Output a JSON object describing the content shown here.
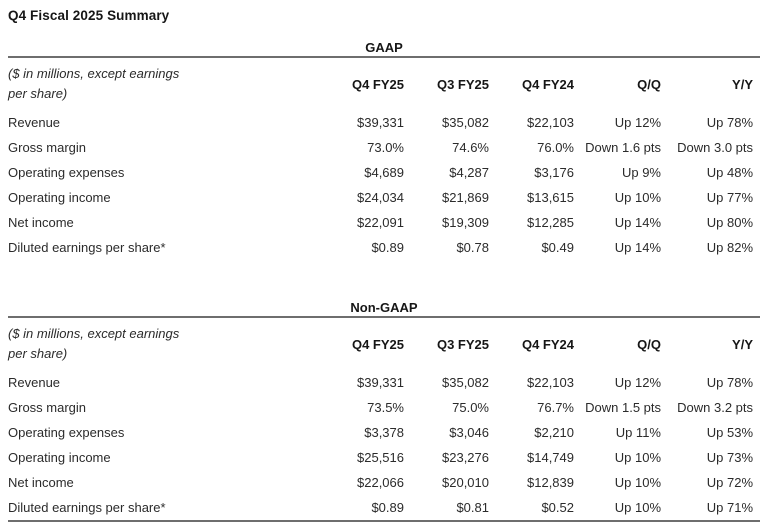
{
  "page": {
    "title": "Q4 Fiscal 2025 Summary"
  },
  "columns": {
    "note_line1": "($ in millions, except earnings",
    "note_line2": "per share)",
    "headers": [
      "Q4 FY25",
      "Q3 FY25",
      "Q4 FY24",
      "Q/Q",
      "Y/Y"
    ]
  },
  "tables": [
    {
      "heading": "GAAP",
      "rows": [
        {
          "label": "Revenue",
          "values": [
            "$39,331",
            "$35,082",
            "$22,103",
            "Up 12%",
            "Up 78%"
          ]
        },
        {
          "label": "Gross margin",
          "values": [
            "73.0%",
            "74.6%",
            "76.0%",
            "Down 1.6 pts",
            "Down 3.0 pts"
          ]
        },
        {
          "label": "Operating expenses",
          "values": [
            "$4,689",
            "$4,287",
            "$3,176",
            "Up 9%",
            "Up 48%"
          ]
        },
        {
          "label": "Operating income",
          "values": [
            "$24,034",
            "$21,869",
            "$13,615",
            "Up 10%",
            "Up 77%"
          ]
        },
        {
          "label": "Net income",
          "values": [
            "$22,091",
            "$19,309",
            "$12,285",
            "Up 14%",
            "Up 80%"
          ]
        },
        {
          "label": "Diluted earnings per share*",
          "values": [
            "$0.89",
            "$0.78",
            "$0.49",
            "Up 14%",
            "Up 82%"
          ]
        }
      ]
    },
    {
      "heading": "Non-GAAP",
      "rows": [
        {
          "label": "Revenue",
          "values": [
            "$39,331",
            "$35,082",
            "$22,103",
            "Up 12%",
            "Up 78%"
          ]
        },
        {
          "label": "Gross margin",
          "values": [
            "73.5%",
            "75.0%",
            "76.7%",
            "Down 1.5 pts",
            "Down 3.2 pts"
          ]
        },
        {
          "label": "Operating expenses",
          "values": [
            "$3,378",
            "$3,046",
            "$2,210",
            "Up 11%",
            "Up 53%"
          ]
        },
        {
          "label": "Operating income",
          "values": [
            "$25,516",
            "$23,276",
            "$14,749",
            "Up 10%",
            "Up 73%"
          ]
        },
        {
          "label": "Net income",
          "values": [
            "$22,066",
            "$20,010",
            "$12,839",
            "Up 10%",
            "Up 72%"
          ]
        },
        {
          "label": "Diluted earnings per share*",
          "values": [
            "$0.89",
            "$0.81",
            "$0.52",
            "Up 10%",
            "Up 71%"
          ]
        }
      ]
    }
  ],
  "colors": {
    "text": "#2b2b2b",
    "heading_text": "#161616",
    "rule": "#6e6e6e",
    "background": "#ffffff"
  }
}
